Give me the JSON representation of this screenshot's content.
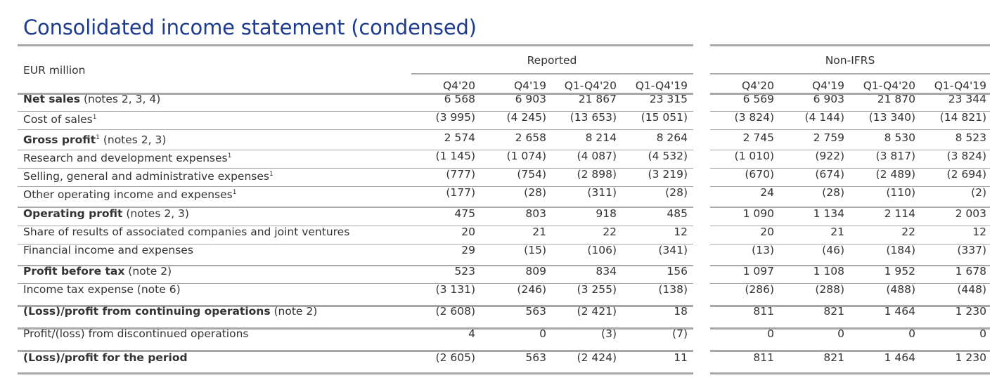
{
  "title": "Consolidated income statement (condensed)",
  "unit_label": "EUR million",
  "groups": [
    "Reported",
    "Non-IFRS"
  ],
  "columns": [
    "Q4'20",
    "Q4'19",
    "Q1-Q4'20",
    "Q1-Q4'19",
    "Q4'20",
    "Q4'19",
    "Q1-Q4'20",
    "Q1-Q4'19"
  ],
  "rows": [
    {
      "bold": "Net sales",
      "rest": " (notes 2, 3, 4)",
      "values": [
        "6 568",
        "6 903",
        "21 867",
        "23 315",
        "6 569",
        "6 903",
        "21 870",
        "23 344"
      ]
    },
    {
      "bold": "",
      "rest": "Cost of sales",
      "sup": "1",
      "values": [
        "(3 995)",
        "(4 245)",
        "(13 653)",
        "(15 051)",
        "(3 824)",
        "(4 144)",
        "(13 340)",
        "(14 821)"
      ]
    },
    {
      "bold": "Gross profit",
      "sup_after_bold": "1",
      "rest": " (notes 2, 3)",
      "values": [
        "2 574",
        "2 658",
        "8 214",
        "8 264",
        "2 745",
        "2 759",
        "8 530",
        "8 523"
      ]
    },
    {
      "bold": "",
      "rest": "Research and development expenses",
      "sup": "1",
      "values": [
        "(1 145)",
        "(1 074)",
        "(4 087)",
        "(4 532)",
        "(1 010)",
        "(922)",
        "(3 817)",
        "(3 824)"
      ]
    },
    {
      "bold": "",
      "rest": "Selling, general and administrative expenses",
      "sup": "1",
      "values": [
        "(777)",
        "(754)",
        "(2 898)",
        "(3 219)",
        "(670)",
        "(674)",
        "(2 489)",
        "(2 694)"
      ]
    },
    {
      "bold": "",
      "rest": "Other operating income and expenses",
      "sup": "1",
      "values": [
        "(177)",
        "(28)",
        "(311)",
        "(28)",
        "24",
        "(28)",
        "(110)",
        "(2)"
      ]
    },
    {
      "bold": "Operating profit",
      "rest": " (notes 2, 3)",
      "values": [
        "475",
        "803",
        "918",
        "485",
        "1 090",
        "1 134",
        "2 114",
        "2 003"
      ]
    },
    {
      "bold": "",
      "rest": "Share of results of associated companies and joint ventures",
      "values": [
        "20",
        "21",
        "22",
        "12",
        "20",
        "21",
        "22",
        "12"
      ]
    },
    {
      "bold": "",
      "rest": "Financial income and expenses",
      "values": [
        "29",
        "(15)",
        "(106)",
        "(341)",
        "(13)",
        "(46)",
        "(184)",
        "(337)"
      ]
    },
    {
      "bold": "Profit before tax",
      "rest": " (note 2)",
      "values": [
        "523",
        "809",
        "834",
        "156",
        "1 097",
        "1 108",
        "1 952",
        "1 678"
      ]
    },
    {
      "bold": "",
      "rest": "Income tax expense (note 6)",
      "values": [
        "(3 131)",
        "(246)",
        "(3 255)",
        "(138)",
        "(286)",
        "(288)",
        "(488)",
        "(448)"
      ]
    },
    {
      "bold": "(Loss)/profit from continuing operations",
      "rest": " (note 2)",
      "values": [
        "(2 608)",
        "563",
        "(2 421)",
        "18",
        "811",
        "821",
        "1 464",
        "1 230"
      ]
    },
    {
      "bold": "",
      "rest": "Profit/(loss) from discontinued operations",
      "values": [
        "4",
        "0",
        "(3)",
        "(7)",
        "0",
        "0",
        "0",
        "0"
      ]
    },
    {
      "bold": "(Loss)/profit for the period",
      "rest": "",
      "values": [
        "(2 605)",
        "563",
        "(2 424)",
        "11",
        "811",
        "821",
        "1 464",
        "1 230"
      ]
    }
  ]
}
